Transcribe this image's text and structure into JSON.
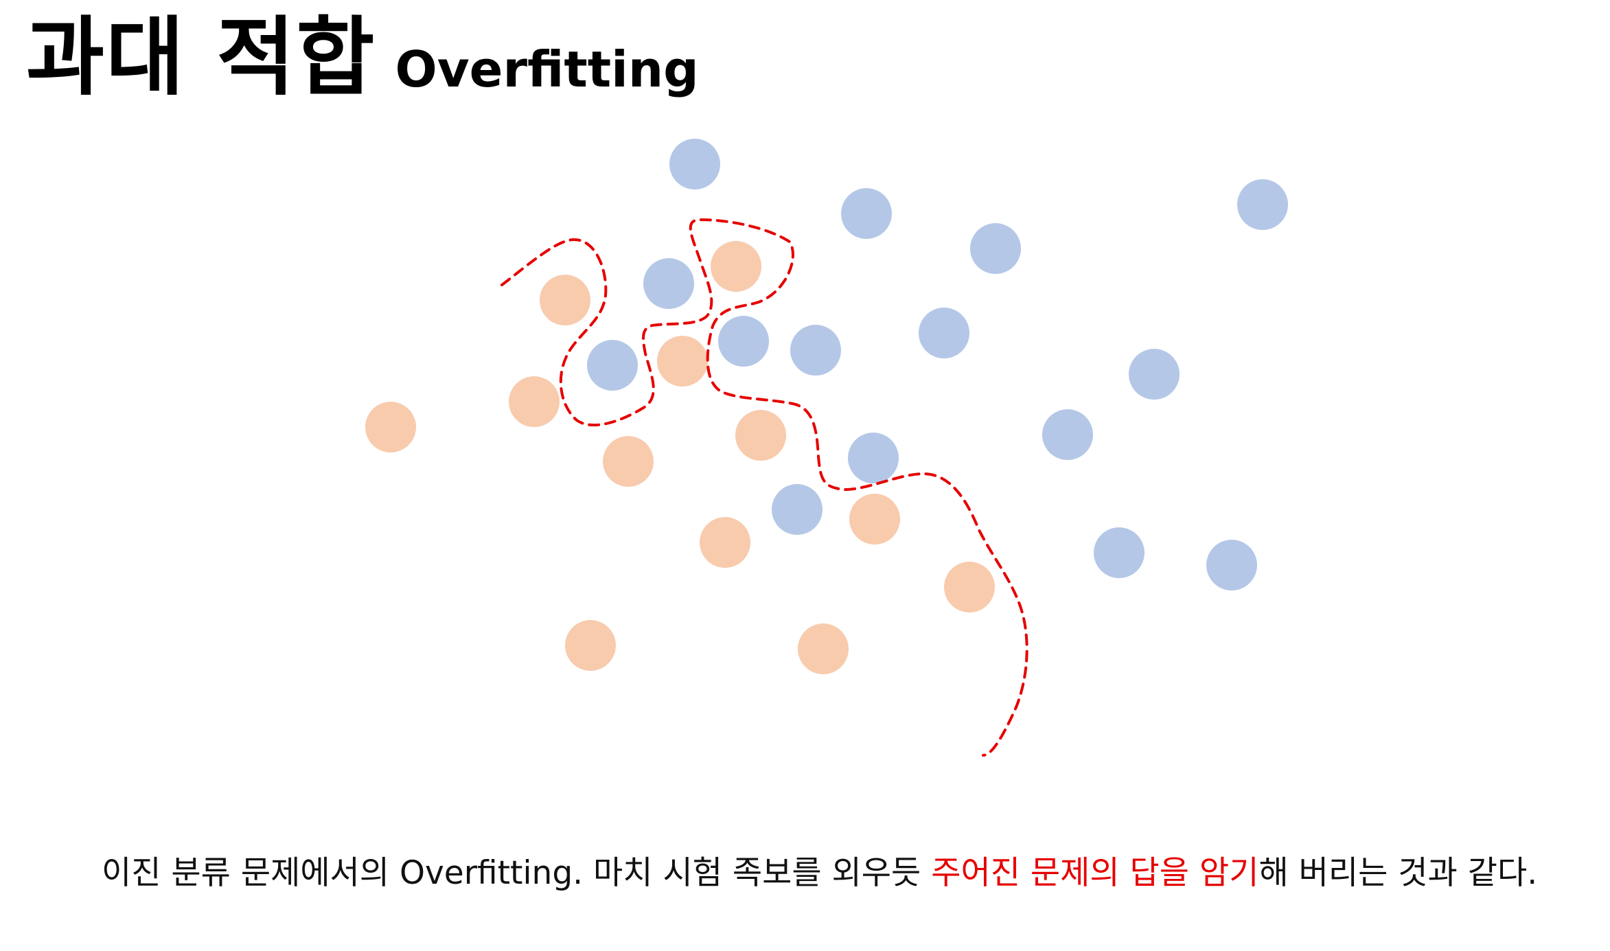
{
  "title": {
    "korean": "과대 적합",
    "english": "Overfitting"
  },
  "caption": {
    "before": "이진 분류 문제에서의 Overfitting. 마치 시험 족보를 외우듯 ",
    "highlight": "주어진 문제의 답을 암기",
    "after": "해 버리는 것과 같다."
  },
  "colors": {
    "class_a": "#b4c7e7",
    "class_b": "#f8cbad",
    "boundary": "#e60000",
    "highlight_text": "#e60000"
  },
  "legend_semantics": {
    "class_a_color_name": "blue",
    "class_b_color_name": "orange",
    "boundary_style": "red dashed decision boundary"
  }
}
